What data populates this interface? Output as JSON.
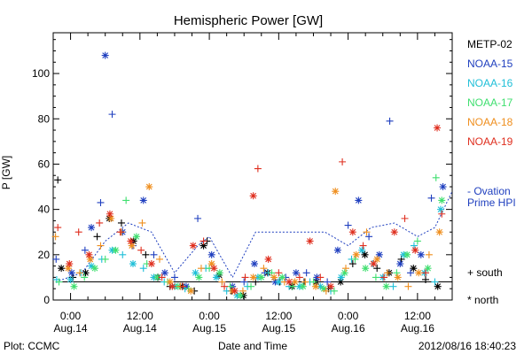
{
  "chart_data": {
    "type": "scatter",
    "title": "Hemispheric Power [GW]",
    "xlabel": "Date and Time",
    "ylabel": "P [GW]",
    "x_unit": "hours",
    "xlim": [
      -3,
      66
    ],
    "ylim": [
      0,
      118
    ],
    "x_ticks": [
      {
        "x": 0,
        "l1": "0:00",
        "l2": "Aug.14"
      },
      {
        "x": 12,
        "l1": "12:00",
        "l2": "Aug.14"
      },
      {
        "x": 24,
        "l1": "0:00",
        "l2": "Aug.15"
      },
      {
        "x": 36,
        "l1": "12:00",
        "l2": "Aug.15"
      },
      {
        "x": 48,
        "l1": "0:00",
        "l2": "Aug.16"
      },
      {
        "x": 60,
        "l1": "12:00",
        "l2": "Aug.16"
      }
    ],
    "y_ticks": [
      0,
      20,
      40,
      60,
      80,
      100
    ],
    "legend_placement": "right",
    "series": [
      {
        "name": "METP-02",
        "color": "#000000",
        "points": [
          [
            -2.2,
            53
          ],
          [
            -1.6,
            14
          ],
          [
            0.4,
            10
          ],
          [
            2.6,
            12
          ],
          [
            4.6,
            28
          ],
          [
            6.7,
            36
          ],
          [
            8.8,
            34
          ],
          [
            10.9,
            26
          ],
          [
            13.0,
            20
          ],
          [
            15.1,
            10
          ],
          [
            17.2,
            6
          ],
          [
            19.3,
            6
          ],
          [
            21.4,
            4
          ],
          [
            23.0,
            24
          ],
          [
            23.6,
            26
          ],
          [
            25.7,
            11
          ],
          [
            27.8,
            4
          ],
          [
            29.9,
            2
          ],
          [
            32.0,
            8
          ],
          [
            34.1,
            12
          ],
          [
            36.2,
            8
          ],
          [
            38.3,
            6
          ],
          [
            40.4,
            8
          ],
          [
            42.5,
            8
          ],
          [
            44.6,
            5
          ],
          [
            46.7,
            8
          ],
          [
            48.8,
            16
          ],
          [
            50.9,
            20
          ],
          [
            53.0,
            14
          ],
          [
            55.1,
            12
          ],
          [
            57.2,
            18
          ],
          [
            59.3,
            14
          ],
          [
            61.4,
            9
          ],
          [
            63.5,
            6
          ]
        ]
      },
      {
        "name": "NOAA-15",
        "color": "#1f3fbf",
        "points": [
          [
            -2.5,
            18
          ],
          [
            0.2,
            12
          ],
          [
            2.5,
            22
          ],
          [
            3.6,
            32
          ],
          [
            5.2,
            43
          ],
          [
            6.0,
            108
          ],
          [
            7.2,
            82
          ],
          [
            9.0,
            30
          ],
          [
            10.8,
            24
          ],
          [
            12.6,
            44
          ],
          [
            14.4,
            20
          ],
          [
            16.3,
            12
          ],
          [
            18.0,
            10
          ],
          [
            20.0,
            6
          ],
          [
            22.0,
            36
          ],
          [
            24.4,
            20
          ],
          [
            26.2,
            8
          ],
          [
            28.0,
            6
          ],
          [
            30.0,
            8
          ],
          [
            31.8,
            16
          ],
          [
            33.6,
            12
          ],
          [
            35.4,
            8
          ],
          [
            37.2,
            10
          ],
          [
            39.0,
            12
          ],
          [
            40.8,
            12
          ],
          [
            42.6,
            10
          ],
          [
            44.4,
            8
          ],
          [
            46.2,
            22
          ],
          [
            48.0,
            33
          ],
          [
            49.8,
            44
          ],
          [
            51.6,
            28
          ],
          [
            53.4,
            20
          ],
          [
            55.2,
            79
          ],
          [
            57.0,
            16
          ],
          [
            58.8,
            12
          ],
          [
            60.6,
            20
          ],
          [
            62.4,
            45
          ],
          [
            64.4,
            50
          ]
        ]
      },
      {
        "name": "NOAA-16",
        "color": "#1fbfd8",
        "points": [
          [
            -2.4,
            9
          ],
          [
            0.0,
            9
          ],
          [
            1.8,
            12
          ],
          [
            3.6,
            15
          ],
          [
            5.4,
            18
          ],
          [
            7.2,
            22
          ],
          [
            9.0,
            20
          ],
          [
            10.8,
            16
          ],
          [
            12.6,
            14
          ],
          [
            14.4,
            10
          ],
          [
            16.2,
            8
          ],
          [
            18.0,
            6
          ],
          [
            19.8,
            5
          ],
          [
            21.6,
            12
          ],
          [
            23.4,
            14
          ],
          [
            25.2,
            10
          ],
          [
            27.0,
            4
          ],
          [
            28.8,
            2
          ],
          [
            30.6,
            6
          ],
          [
            32.4,
            10
          ],
          [
            34.2,
            12
          ],
          [
            36.0,
            8
          ],
          [
            37.8,
            6
          ],
          [
            39.6,
            6
          ],
          [
            41.4,
            8
          ],
          [
            43.2,
            6
          ],
          [
            45.0,
            4
          ],
          [
            46.8,
            10
          ],
          [
            48.6,
            18
          ],
          [
            50.4,
            22
          ],
          [
            52.2,
            16
          ],
          [
            54.0,
            10
          ],
          [
            55.8,
            6
          ],
          [
            57.6,
            20
          ],
          [
            59.4,
            24
          ],
          [
            61.2,
            12
          ],
          [
            63.0,
            8
          ],
          [
            64.0,
            40
          ]
        ]
      },
      {
        "name": "NOAA-17",
        "color": "#3fdf6f",
        "points": [
          [
            -2.0,
            8
          ],
          [
            0.6,
            6
          ],
          [
            2.4,
            10
          ],
          [
            4.2,
            14
          ],
          [
            6.0,
            18
          ],
          [
            7.8,
            22
          ],
          [
            9.6,
            44
          ],
          [
            11.4,
            28
          ],
          [
            13.2,
            16
          ],
          [
            15.0,
            10
          ],
          [
            16.8,
            8
          ],
          [
            18.6,
            6
          ],
          [
            20.4,
            5
          ],
          [
            22.2,
            10
          ],
          [
            24.0,
            14
          ],
          [
            25.8,
            12
          ],
          [
            27.6,
            6
          ],
          [
            29.4,
            2
          ],
          [
            31.2,
            6
          ],
          [
            33.0,
            10
          ],
          [
            34.8,
            12
          ],
          [
            36.6,
            10
          ],
          [
            38.4,
            6
          ],
          [
            40.2,
            6
          ],
          [
            42.0,
            8
          ],
          [
            43.8,
            5
          ],
          [
            45.6,
            4
          ],
          [
            47.4,
            12
          ],
          [
            49.2,
            18
          ],
          [
            51.0,
            14
          ],
          [
            52.8,
            10
          ],
          [
            54.6,
            6
          ],
          [
            56.4,
            12
          ],
          [
            58.2,
            20
          ],
          [
            60.0,
            26
          ],
          [
            61.8,
            14
          ],
          [
            63.2,
            54
          ],
          [
            64.2,
            44
          ]
        ]
      },
      {
        "name": "NOAA-18",
        "color": "#ef8f1f",
        "points": [
          [
            -2.6,
            28
          ],
          [
            -0.4,
            14
          ],
          [
            1.6,
            12
          ],
          [
            3.4,
            18
          ],
          [
            5.2,
            24
          ],
          [
            7.0,
            36
          ],
          [
            8.8,
            30
          ],
          [
            10.6,
            24
          ],
          [
            12.4,
            34
          ],
          [
            13.6,
            50
          ],
          [
            15.4,
            18
          ],
          [
            17.2,
            8
          ],
          [
            19.0,
            6
          ],
          [
            20.8,
            4
          ],
          [
            22.6,
            14
          ],
          [
            24.4,
            16
          ],
          [
            26.2,
            8
          ],
          [
            28.0,
            4
          ],
          [
            29.8,
            4
          ],
          [
            31.6,
            10
          ],
          [
            33.4,
            14
          ],
          [
            35.2,
            10
          ],
          [
            37.0,
            8
          ],
          [
            38.8,
            8
          ],
          [
            40.6,
            8
          ],
          [
            42.4,
            6
          ],
          [
            44.2,
            4
          ],
          [
            45.8,
            48
          ],
          [
            47.6,
            14
          ],
          [
            49.4,
            20
          ],
          [
            51.2,
            30
          ],
          [
            53.0,
            18
          ],
          [
            54.8,
            12
          ],
          [
            56.6,
            10
          ],
          [
            58.4,
            6
          ],
          [
            60.2,
            12
          ],
          [
            62.0,
            20
          ],
          [
            63.8,
            30
          ]
        ]
      },
      {
        "name": "NOAA-19",
        "color": "#df2f1f",
        "points": [
          [
            -2.2,
            32
          ],
          [
            -0.2,
            16
          ],
          [
            1.4,
            30
          ],
          [
            3.2,
            20
          ],
          [
            5.0,
            34
          ],
          [
            6.8,
            38
          ],
          [
            8.6,
            30
          ],
          [
            10.4,
            26
          ],
          [
            12.2,
            22
          ],
          [
            14.0,
            16
          ],
          [
            15.8,
            10
          ],
          [
            17.6,
            6
          ],
          [
            19.4,
            6
          ],
          [
            21.2,
            24
          ],
          [
            23.0,
            26
          ],
          [
            24.8,
            14
          ],
          [
            26.6,
            6
          ],
          [
            28.4,
            4
          ],
          [
            30.2,
            10
          ],
          [
            31.6,
            46
          ],
          [
            32.4,
            58
          ],
          [
            34.2,
            18
          ],
          [
            36.0,
            12
          ],
          [
            37.8,
            8
          ],
          [
            39.6,
            10
          ],
          [
            41.4,
            26
          ],
          [
            43.2,
            10
          ],
          [
            45.0,
            6
          ],
          [
            47.0,
            61
          ],
          [
            48.8,
            30
          ],
          [
            50.6,
            24
          ],
          [
            52.4,
            16
          ],
          [
            54.2,
            10
          ],
          [
            56.0,
            30
          ],
          [
            57.8,
            36
          ],
          [
            59.6,
            22
          ],
          [
            61.4,
            12
          ],
          [
            63.4,
            76
          ],
          [
            64.2,
            38
          ]
        ]
      }
    ],
    "ovation_line": {
      "color": "#1f3fbf",
      "points": [
        [
          -2.6,
          8
        ],
        [
          2,
          12
        ],
        [
          6,
          26
        ],
        [
          10,
          34
        ],
        [
          14,
          30
        ],
        [
          18,
          12
        ],
        [
          22,
          24
        ],
        [
          24,
          28
        ],
        [
          28,
          10
        ],
        [
          32,
          30
        ],
        [
          36,
          30
        ],
        [
          40,
          30
        ],
        [
          44,
          30
        ],
        [
          48,
          24
        ],
        [
          52,
          32
        ],
        [
          56,
          34
        ],
        [
          60,
          28
        ],
        [
          63,
          32
        ],
        [
          66,
          48
        ]
      ]
    },
    "mean_line": {
      "color": "#000000",
      "points": [
        [
          -2.6,
          8
        ],
        [
          66,
          8
        ]
      ]
    },
    "annotations": {
      "ovation_label": [
        "- Ovation",
        "Prime HPI"
      ],
      "south_label": "+ south",
      "north_label": "* north"
    }
  },
  "footer": {
    "left": "Plot: CCMC",
    "right": "2012/08/16 18:40:23"
  }
}
